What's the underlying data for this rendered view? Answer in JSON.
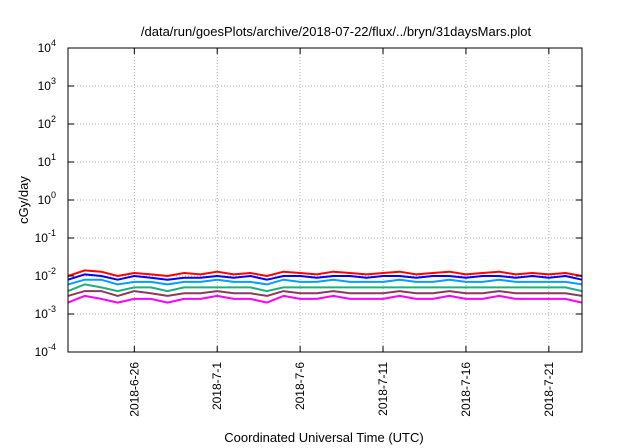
{
  "chart_data": {
    "type": "line",
    "title": "/data/run/goesPlots/archive/2018-07-22/flux/../bryn/31daysMars.plot",
    "xlabel": "Coordinated Universal Time (UTC)",
    "ylabel": "cGy/day",
    "y_scale": "log",
    "ylim": [
      0.0001,
      10000
    ],
    "y_ticks": [
      {
        "value": 0.0001,
        "base": "10",
        "exp": "-4"
      },
      {
        "value": 0.001,
        "base": "10",
        "exp": "-3"
      },
      {
        "value": 0.01,
        "base": "10",
        "exp": "-2"
      },
      {
        "value": 0.1,
        "base": "10",
        "exp": "-1"
      },
      {
        "value": 1,
        "base": "10",
        "exp": "0"
      },
      {
        "value": 10,
        "base": "10",
        "exp": "1"
      },
      {
        "value": 100,
        "base": "10",
        "exp": "2"
      },
      {
        "value": 1000,
        "base": "10",
        "exp": "3"
      },
      {
        "value": 10000,
        "base": "10",
        "exp": "4"
      }
    ],
    "xlim": [
      "2018-06-22",
      "2018-07-23"
    ],
    "x_tick_labels": [
      "2018-6-26",
      "2018-7-1",
      "2018-7-6",
      "2018-7-11",
      "2018-7-16",
      "2018-7-21"
    ],
    "x_tick_dates": [
      "2018-06-26",
      "2018-07-01",
      "2018-07-06",
      "2018-07-11",
      "2018-07-16",
      "2018-07-21"
    ],
    "grid": true,
    "x_dates": [
      "2018-06-22",
      "2018-06-23",
      "2018-06-24",
      "2018-06-25",
      "2018-06-26",
      "2018-06-27",
      "2018-06-28",
      "2018-06-29",
      "2018-06-30",
      "2018-07-01",
      "2018-07-02",
      "2018-07-03",
      "2018-07-04",
      "2018-07-05",
      "2018-07-06",
      "2018-07-07",
      "2018-07-08",
      "2018-07-09",
      "2018-07-10",
      "2018-07-11",
      "2018-07-12",
      "2018-07-13",
      "2018-07-14",
      "2018-07-15",
      "2018-07-16",
      "2018-07-17",
      "2018-07-18",
      "2018-07-19",
      "2018-07-20",
      "2018-07-21",
      "2018-07-22",
      "2018-07-23"
    ],
    "series": [
      {
        "color": "#ff0000",
        "values": [
          0.01,
          0.014,
          0.013,
          0.01,
          0.012,
          0.011,
          0.01,
          0.012,
          0.011,
          0.013,
          0.011,
          0.012,
          0.01,
          0.013,
          0.012,
          0.011,
          0.013,
          0.012,
          0.011,
          0.012,
          0.013,
          0.011,
          0.012,
          0.013,
          0.011,
          0.012,
          0.013,
          0.011,
          0.012,
          0.011,
          0.012,
          0.01
        ]
      },
      {
        "color": "#0000ff",
        "values": [
          0.008,
          0.011,
          0.01,
          0.008,
          0.01,
          0.009,
          0.008,
          0.009,
          0.009,
          0.01,
          0.009,
          0.01,
          0.008,
          0.01,
          0.01,
          0.009,
          0.01,
          0.01,
          0.009,
          0.01,
          0.01,
          0.009,
          0.01,
          0.01,
          0.009,
          0.01,
          0.01,
          0.009,
          0.01,
          0.009,
          0.01,
          0.008
        ]
      },
      {
        "color": "#00a0ff",
        "values": [
          0.006,
          0.008,
          0.008,
          0.006,
          0.007,
          0.007,
          0.006,
          0.007,
          0.007,
          0.008,
          0.007,
          0.007,
          0.006,
          0.008,
          0.007,
          0.007,
          0.008,
          0.007,
          0.007,
          0.007,
          0.008,
          0.007,
          0.007,
          0.008,
          0.007,
          0.007,
          0.008,
          0.007,
          0.007,
          0.007,
          0.007,
          0.006
        ]
      },
      {
        "color": "#20b080",
        "values": [
          0.004,
          0.006,
          0.005,
          0.004,
          0.005,
          0.005,
          0.004,
          0.005,
          0.005,
          0.005,
          0.005,
          0.005,
          0.004,
          0.005,
          0.005,
          0.005,
          0.005,
          0.005,
          0.005,
          0.005,
          0.005,
          0.005,
          0.005,
          0.005,
          0.005,
          0.005,
          0.005,
          0.005,
          0.005,
          0.005,
          0.005,
          0.004
        ]
      },
      {
        "color": "#8b3a5a",
        "values": [
          0.003,
          0.004,
          0.004,
          0.003,
          0.004,
          0.0035,
          0.003,
          0.0035,
          0.0035,
          0.004,
          0.0035,
          0.0035,
          0.003,
          0.004,
          0.0035,
          0.0035,
          0.004,
          0.0035,
          0.0035,
          0.0035,
          0.004,
          0.0035,
          0.0035,
          0.004,
          0.0035,
          0.0035,
          0.004,
          0.0035,
          0.0035,
          0.0035,
          0.0035,
          0.003
        ]
      },
      {
        "color": "#ff00ff",
        "values": [
          0.002,
          0.003,
          0.0025,
          0.002,
          0.0025,
          0.0025,
          0.002,
          0.0025,
          0.0025,
          0.003,
          0.0025,
          0.0025,
          0.002,
          0.003,
          0.0025,
          0.0025,
          0.003,
          0.0025,
          0.0025,
          0.0025,
          0.003,
          0.0025,
          0.0025,
          0.003,
          0.0025,
          0.0025,
          0.003,
          0.0025,
          0.0025,
          0.0025,
          0.0025,
          0.002
        ]
      }
    ]
  }
}
